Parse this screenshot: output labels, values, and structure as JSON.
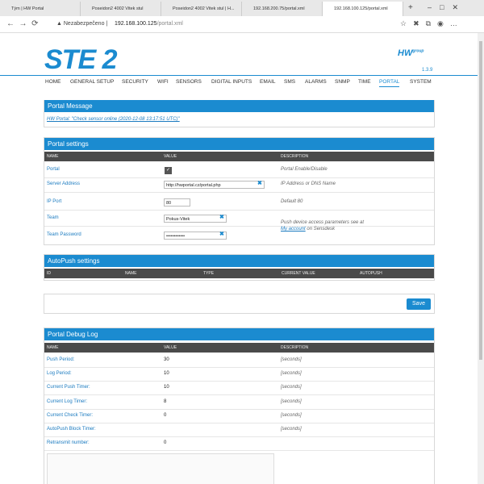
{
  "browser": {
    "tabs": [
      "Tým | HW Portal",
      "Poseidon2 4002 Vitek stul",
      "Poseidon2 4002 Vitek stul | H...",
      "192.168.200.75/portal.xml",
      "192.168.100.125/portal.xml"
    ],
    "active_tab": 4,
    "security": "Nezabezpečeno",
    "url_host": "192.168.100.125",
    "url_path": "/portal.xml"
  },
  "header": {
    "logo": "STE 2",
    "brand": "HW",
    "brand_sub": "group",
    "version": "1.3.9"
  },
  "nav": {
    "items": [
      "HOME",
      "GENERAL SETUP",
      "SECURITY",
      "WIFI",
      "SENSORS",
      "DIGITAL INPUTS",
      "EMAIL",
      "SMS",
      "ALARMS",
      "SNMP",
      "TIME",
      "PORTAL",
      "SYSTEM"
    ],
    "active": 11
  },
  "portal_message": {
    "title": "Portal Message",
    "text": "HW Portal: \"Check sensor online (2020-12-08 13:17:51 UTC)\""
  },
  "portal_settings": {
    "title": "Portal settings",
    "columns": [
      "NAME",
      "VALUE",
      "DESCRIPTION"
    ],
    "rows": [
      {
        "name": "Portal",
        "checked": true,
        "description": "Portal Enable/Disable"
      },
      {
        "name": "Server Address",
        "input": "http://hwportal.cz/portal.php",
        "description": "IP Address or DNS Name"
      },
      {
        "name": "IP Port",
        "input": "80",
        "description": "Default 80"
      },
      {
        "name": "Team",
        "input": "Pokus-Vitek"
      },
      {
        "name": "Team Password",
        "input": "••••••••••••"
      }
    ],
    "note": {
      "before": "Push device access parameters see at",
      "link": "My account",
      "after": "on Sensdesk"
    }
  },
  "autopush": {
    "title": "AutoPush settings",
    "columns": [
      "ID",
      "NAME",
      "TYPE",
      "CURRENT VALUE",
      "AUTOPUSH"
    ]
  },
  "save": "Save",
  "debug_log": {
    "title": "Portal Debug Log",
    "columns": [
      "NAME",
      "VALUE",
      "DESCRIPTION"
    ],
    "rows": [
      {
        "name": "Push Period:",
        "value": "30",
        "description": "[seconds]"
      },
      {
        "name": "Log Period:",
        "value": "10",
        "description": "[seconds]"
      },
      {
        "name": "Current Push Timer:",
        "value": "10",
        "description": "[seconds]"
      },
      {
        "name": "Current Log Timer:",
        "value": "8",
        "description": "[seconds]"
      },
      {
        "name": "Current Check Timer:",
        "value": "0",
        "description": "[seconds]"
      },
      {
        "name": "AutoPush Block Timer:",
        "description": "[seconds]"
      },
      {
        "name": "Retransmit number:",
        "value": "0"
      }
    ]
  }
}
